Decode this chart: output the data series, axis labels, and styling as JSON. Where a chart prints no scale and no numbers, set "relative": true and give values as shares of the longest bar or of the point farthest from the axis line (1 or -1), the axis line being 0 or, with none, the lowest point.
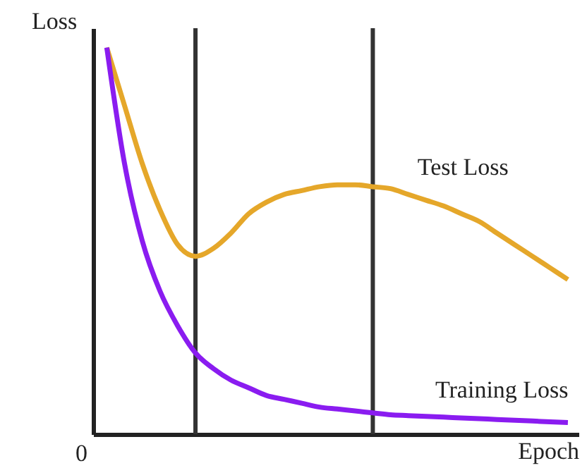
{
  "chart_data": {
    "type": "line",
    "relative": true,
    "xlabel": "Epoch",
    "ylabel": "Loss",
    "categories": [
      null,
      null,
      null,
      null,
      null,
      null,
      null,
      null,
      null,
      null,
      null,
      null,
      null,
      null,
      null,
      null,
      null,
      null,
      null,
      null,
      null,
      null,
      null,
      null,
      null,
      null,
      null
    ],
    "series": [
      {
        "name": "Test Loss",
        "color": "#e5a72a",
        "values": [
          1.0,
          0.85,
          0.7,
          0.58,
          0.49,
          0.46,
          0.48,
          0.52,
          0.57,
          0.6,
          0.62,
          0.63,
          0.64,
          0.645,
          0.645,
          0.64,
          0.635,
          0.62,
          0.605,
          0.59,
          0.57,
          0.55,
          0.52,
          0.49,
          0.46,
          0.43,
          0.4
        ]
      },
      {
        "name": "Training Loss",
        "color": "#8a1cf0",
        "values": [
          1.0,
          0.7,
          0.5,
          0.37,
          0.28,
          0.21,
          0.17,
          0.14,
          0.12,
          0.1,
          0.09,
          0.08,
          0.07,
          0.065,
          0.06,
          0.055,
          0.05,
          0.048,
          0.046,
          0.044,
          0.042,
          0.04,
          0.038,
          0.036,
          0.034,
          0.032,
          0.03
        ]
      }
    ],
    "annotations": [
      "0"
    ]
  }
}
